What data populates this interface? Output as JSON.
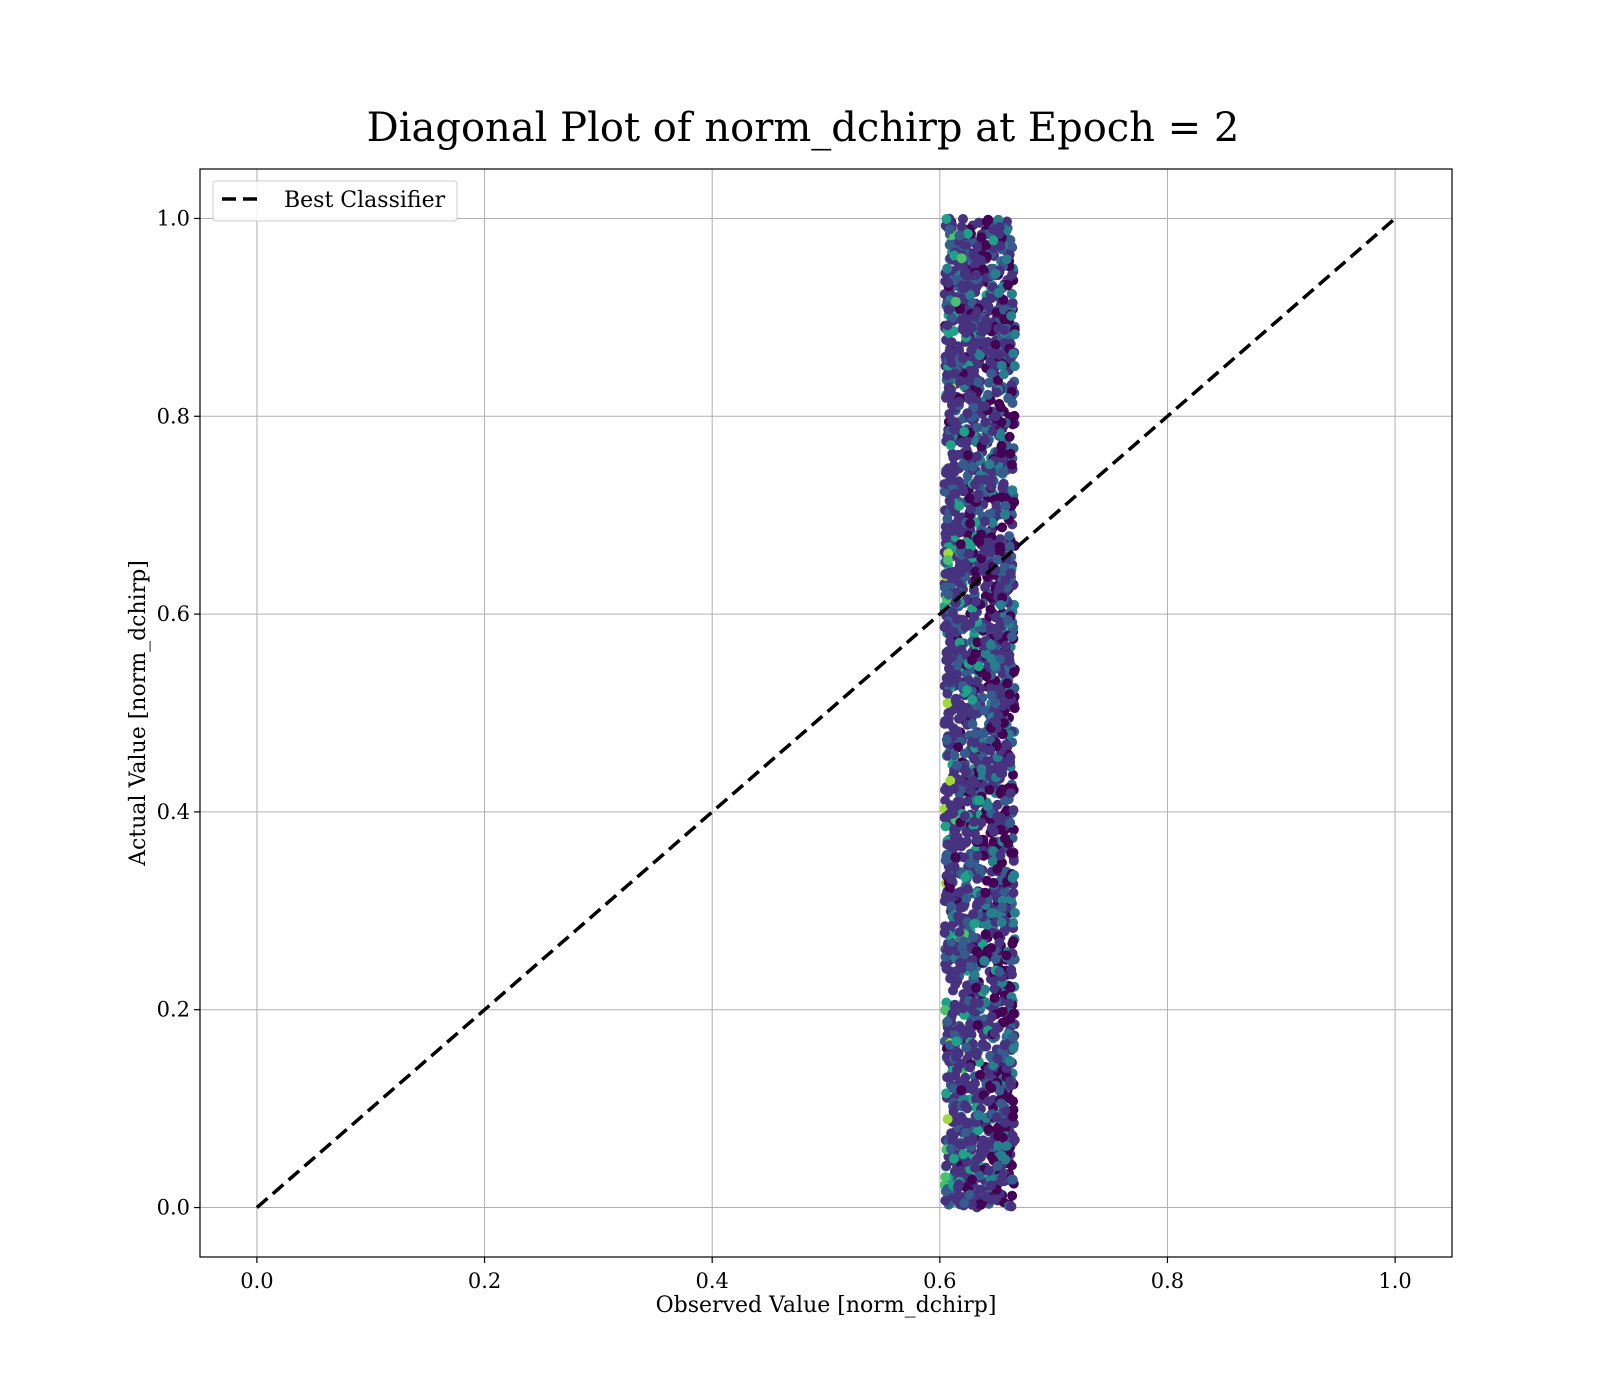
{
  "chart_data": {
    "type": "scatter",
    "title": "Diagonal Plot of norm_dchirp at Epoch = 2",
    "xlabel": "Observed Value [norm_dchirp]",
    "ylabel": "Actual Value [norm_dchirp]",
    "xlim": [
      -0.05,
      1.05
    ],
    "ylim": [
      -0.05,
      1.05
    ],
    "xticks": [
      "0.0",
      "0.2",
      "0.4",
      "0.6",
      "0.8",
      "1.0"
    ],
    "yticks": [
      "0.0",
      "0.2",
      "0.4",
      "0.6",
      "0.8",
      "1.0"
    ],
    "xtick_values": [
      0.0,
      0.2,
      0.4,
      0.6,
      0.8,
      1.0
    ],
    "ytick_values": [
      0.0,
      0.2,
      0.4,
      0.6,
      0.8,
      1.0
    ],
    "grid": true,
    "legend": {
      "placement": "upper-left",
      "entries": [
        "Best Classifier"
      ]
    },
    "reference_line": {
      "name": "Best Classifier",
      "x": [
        0.0,
        1.0
      ],
      "y": [
        0.0,
        1.0
      ],
      "style": "dashed",
      "color": "#000000"
    },
    "scatter": {
      "x_range": [
        0.6,
        0.67
      ],
      "x_center": 0.635,
      "y_range": [
        0.0,
        1.0
      ],
      "colormap": "viridis",
      "palette": [
        "#440154",
        "#46327e",
        "#365c8d",
        "#277f8e",
        "#1fa187",
        "#4ac16d",
        "#a0da39"
      ]
    }
  }
}
